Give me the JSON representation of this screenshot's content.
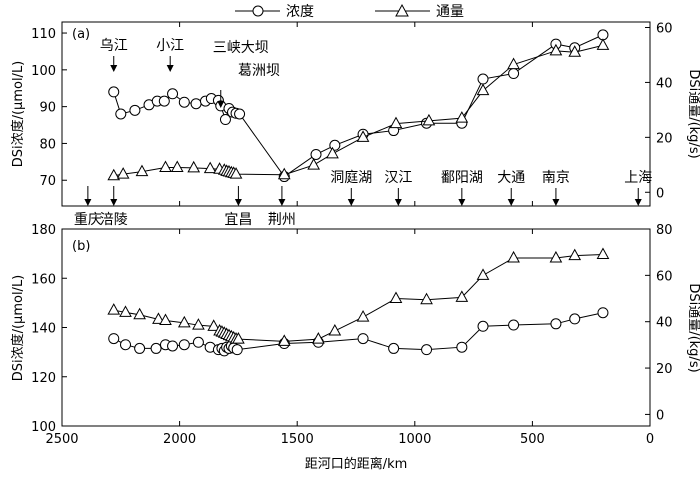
{
  "legend": {
    "conc_label": "浓度",
    "flux_label": "通量"
  },
  "xlabel": "距河口的距离/km",
  "chart_data": [
    {
      "type": "line",
      "panel_label": "(a)",
      "x_axis": {
        "lim": [
          2500,
          0
        ],
        "ticks": [
          2500,
          2000,
          1500,
          1000,
          500,
          0
        ],
        "tick_labels_visible": false
      },
      "y_left": {
        "label": "DSi浓度/(μmol/L)",
        "lim": [
          63,
          113
        ],
        "ticks": [
          70,
          80,
          90,
          100,
          110
        ]
      },
      "y_right": {
        "label": "DSi通量/(kg/s)",
        "lim": [
          -5,
          62
        ],
        "ticks": [
          0,
          20,
          40,
          60
        ]
      },
      "series": [
        {
          "name": "浓度",
          "axis": "left",
          "marker": "circle",
          "x": [
            2280,
            2250,
            2190,
            2130,
            2095,
            2065,
            2030,
            1980,
            1930,
            1890,
            1865,
            1835,
            1825,
            1805,
            1790,
            1775,
            1760,
            1745,
            1555,
            1420,
            1340,
            1220,
            1090,
            950,
            800,
            710,
            580,
            400,
            320,
            200
          ],
          "y": [
            94,
            88,
            89,
            90.5,
            91.5,
            91.5,
            93.5,
            91.2,
            90.8,
            91.5,
            92.2,
            91.7,
            90.2,
            86.5,
            89.5,
            88.5,
            88.2,
            88,
            71,
            77,
            79.5,
            82.5,
            83.5,
            85.5,
            85.5,
            97.5,
            99,
            107,
            106,
            109.5
          ]
        },
        {
          "name": "通量",
          "axis": "right",
          "marker": "triangle",
          "x": [
            2280,
            2240,
            2160,
            2060,
            2010,
            1940,
            1870,
            1830,
            1810,
            1800,
            1790,
            1780,
            1770,
            1760,
            1555,
            1430,
            1350,
            1220,
            1080,
            940,
            800,
            710,
            580,
            400,
            320,
            200
          ],
          "y": [
            6,
            6.6,
            7.5,
            9,
            9,
            8.9,
            8.6,
            8.4,
            8.0,
            7.6,
            7.4,
            7.1,
            6.9,
            6.6,
            6.4,
            9.9,
            14,
            20,
            25,
            26,
            27,
            37,
            46.5,
            51.5,
            51,
            53.5
          ]
        }
      ],
      "annotations": {
        "upper": [
          {
            "label": "乌江",
            "x": 2280
          },
          {
            "label": "小江",
            "x": 2040
          },
          {
            "label": "三峡大坝",
            "x": 1825
          },
          {
            "label": "葛洲坝",
            "x": 1790
          }
        ],
        "lower_labeled": [
          {
            "label": "洞庭湖",
            "x": 1270
          },
          {
            "label": "汉江",
            "x": 1070
          },
          {
            "label": "鄱阳湖",
            "x": 800
          },
          {
            "label": "大通",
            "x": 590
          },
          {
            "label": "南京",
            "x": 400
          },
          {
            "label": "上海",
            "x": 50
          }
        ],
        "below_axis": [
          {
            "label": "重庆",
            "x": 2390
          },
          {
            "label": "涪陵",
            "x": 2280
          },
          {
            "label": "宜昌",
            "x": 1750
          },
          {
            "label": "荆州",
            "x": 1565
          }
        ]
      }
    },
    {
      "type": "line",
      "panel_label": "(b)",
      "x_axis": {
        "lim": [
          2500,
          0
        ],
        "ticks": [
          2500,
          2000,
          1500,
          1000,
          500,
          0
        ],
        "tick_labels": [
          "2500",
          "2000",
          "1500",
          "1000",
          "500",
          "0"
        ],
        "label": "距河口的距离/km"
      },
      "y_left": {
        "label": "DSi浓度/(μmol/L)",
        "lim": [
          100,
          180
        ],
        "ticks": [
          100,
          120,
          140,
          160,
          180
        ]
      },
      "y_right": {
        "label": "DSi通量/(kg/s)",
        "lim": [
          -5,
          80
        ],
        "ticks": [
          0,
          20,
          40,
          60,
          80
        ]
      },
      "series": [
        {
          "name": "浓度",
          "axis": "left",
          "marker": "circle",
          "x": [
            2280,
            2230,
            2170,
            2100,
            2060,
            2030,
            1980,
            1920,
            1870,
            1835,
            1820,
            1810,
            1800,
            1790,
            1780,
            1770,
            1755,
            1555,
            1410,
            1220,
            1090,
            950,
            800,
            710,
            580,
            400,
            320,
            200
          ],
          "y": [
            135.5,
            133,
            131.5,
            131.5,
            133,
            132.5,
            133,
            134,
            132,
            131,
            131.5,
            130.5,
            132,
            131.5,
            132.5,
            131.7,
            131,
            133.5,
            134,
            135.5,
            131.5,
            131,
            132,
            140.5,
            141,
            141.5,
            143.5,
            146
          ],
          "note": "y values in μmol/L"
        },
        {
          "name": "通量",
          "axis": "right",
          "marker": "triangle",
          "x": [
            2280,
            2230,
            2170,
            2090,
            2060,
            1980,
            1920,
            1855,
            1830,
            1820,
            1810,
            1800,
            1790,
            1780,
            1770,
            1760,
            1750,
            1555,
            1410,
            1340,
            1220,
            1080,
            950,
            800,
            710,
            580,
            400,
            320,
            200
          ],
          "y": [
            45,
            44,
            43,
            41,
            40.5,
            39.5,
            38.5,
            38,
            36,
            35.5,
            35,
            34.5,
            34,
            33.5,
            33,
            32.5,
            32.5,
            31.5,
            32.5,
            36,
            42,
            50,
            49.5,
            50.5,
            60,
            67.5,
            67.5,
            68.5,
            69
          ]
        }
      ]
    }
  ]
}
